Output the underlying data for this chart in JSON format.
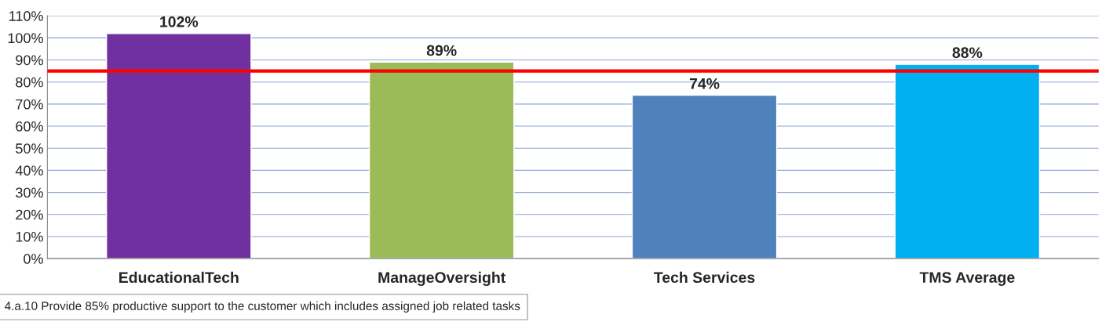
{
  "chart_data": {
    "type": "bar",
    "categories": [
      "EducationalTech",
      "ManageOversight",
      "Tech Services",
      "TMS Average"
    ],
    "values": [
      102,
      89,
      74,
      88
    ],
    "colors": [
      "#7030a0",
      "#9bbb59",
      "#4f81bd",
      "#00b0f0"
    ],
    "value_labels": [
      "102%",
      "89%",
      "74%",
      "88%"
    ],
    "ylim": [
      0,
      110
    ],
    "yticks": [
      {
        "value": 0,
        "label": "0%"
      },
      {
        "value": 10,
        "label": "10%"
      },
      {
        "value": 20,
        "label": "20%"
      },
      {
        "value": 30,
        "label": "30%"
      },
      {
        "value": 40,
        "label": "40%"
      },
      {
        "value": 50,
        "label": "50%"
      },
      {
        "value": 60,
        "label": "60%"
      },
      {
        "value": 70,
        "label": "70%"
      },
      {
        "value": 80,
        "label": "80%"
      },
      {
        "value": 90,
        "label": "90%"
      },
      {
        "value": 100,
        "label": "100%"
      },
      {
        "value": 110,
        "label": "110%"
      }
    ],
    "grid": "y",
    "ref_lines": [
      {
        "axis": "y",
        "value": 85,
        "color": "#ff0000"
      }
    ],
    "annotations": [
      "4.a.10 Provide 85% productive support to the customer which includes assigned job related tasks"
    ]
  }
}
